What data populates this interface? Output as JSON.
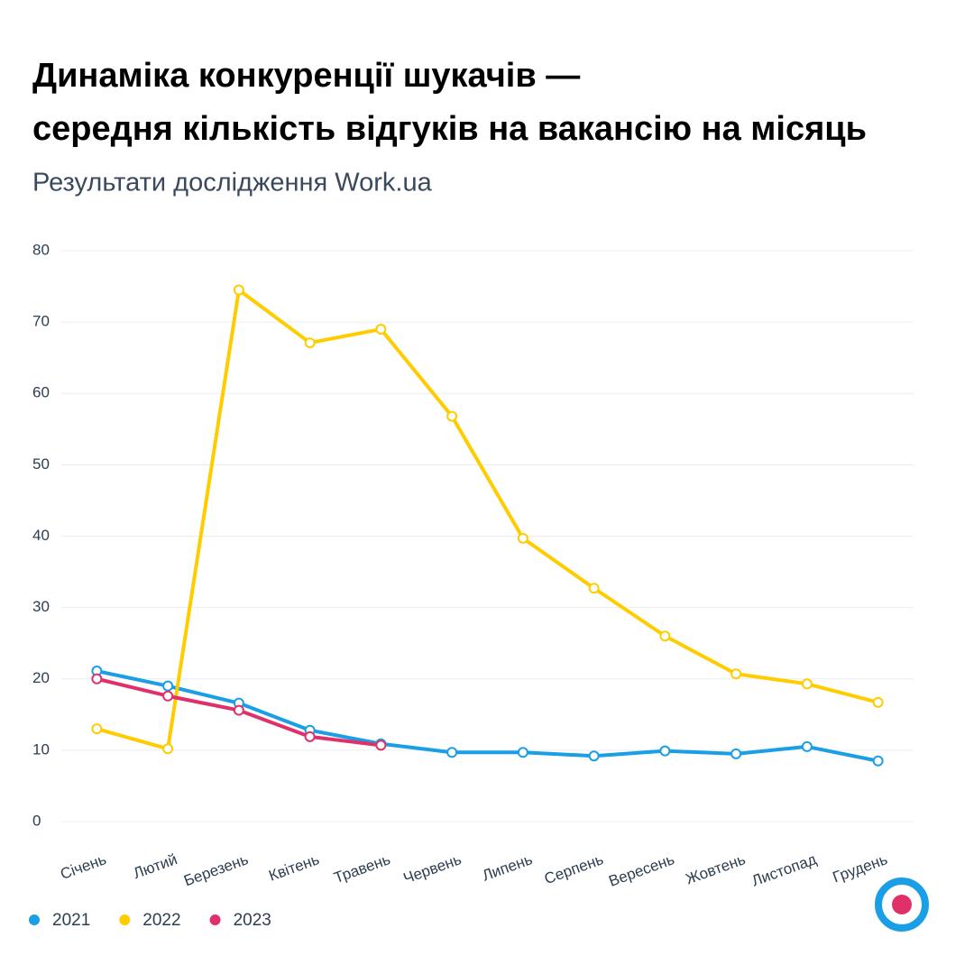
{
  "chart_data": {
    "type": "line",
    "title": [
      "Динаміка конкуренції шукачів —",
      "середня кількість відгуків на вакансію на місяць"
    ],
    "subtitle": "Результати дослідження Work.ua",
    "categories": [
      "Січень",
      "Лютий",
      "Березень",
      "Квітень",
      "Травень",
      "Червень",
      "Липень",
      "Серпень",
      "Вересень",
      "Жовтень",
      "Листопад",
      "Грудень"
    ],
    "series": [
      {
        "name": "2021",
        "color": "#1a9ee6",
        "values": [
          21.1,
          19.0,
          16.6,
          12.8,
          10.9,
          9.7,
          9.7,
          9.2,
          9.9,
          9.5,
          10.5,
          8.5
        ]
      },
      {
        "name": "2022",
        "color": "#ffcc00",
        "values": [
          13.0,
          10.2,
          74.5,
          67.1,
          69.0,
          56.8,
          39.7,
          32.7,
          26.0,
          20.7,
          19.3,
          16.7
        ]
      },
      {
        "name": "2023",
        "color": "#e0306a",
        "values": [
          20.0,
          17.6,
          15.6,
          11.9,
          10.7,
          null,
          null,
          null,
          null,
          null,
          null,
          null
        ]
      }
    ],
    "ylim": [
      0,
      80
    ],
    "yticks": [
      0,
      10,
      20,
      30,
      40,
      50,
      60,
      70,
      80
    ],
    "grid": true
  }
}
